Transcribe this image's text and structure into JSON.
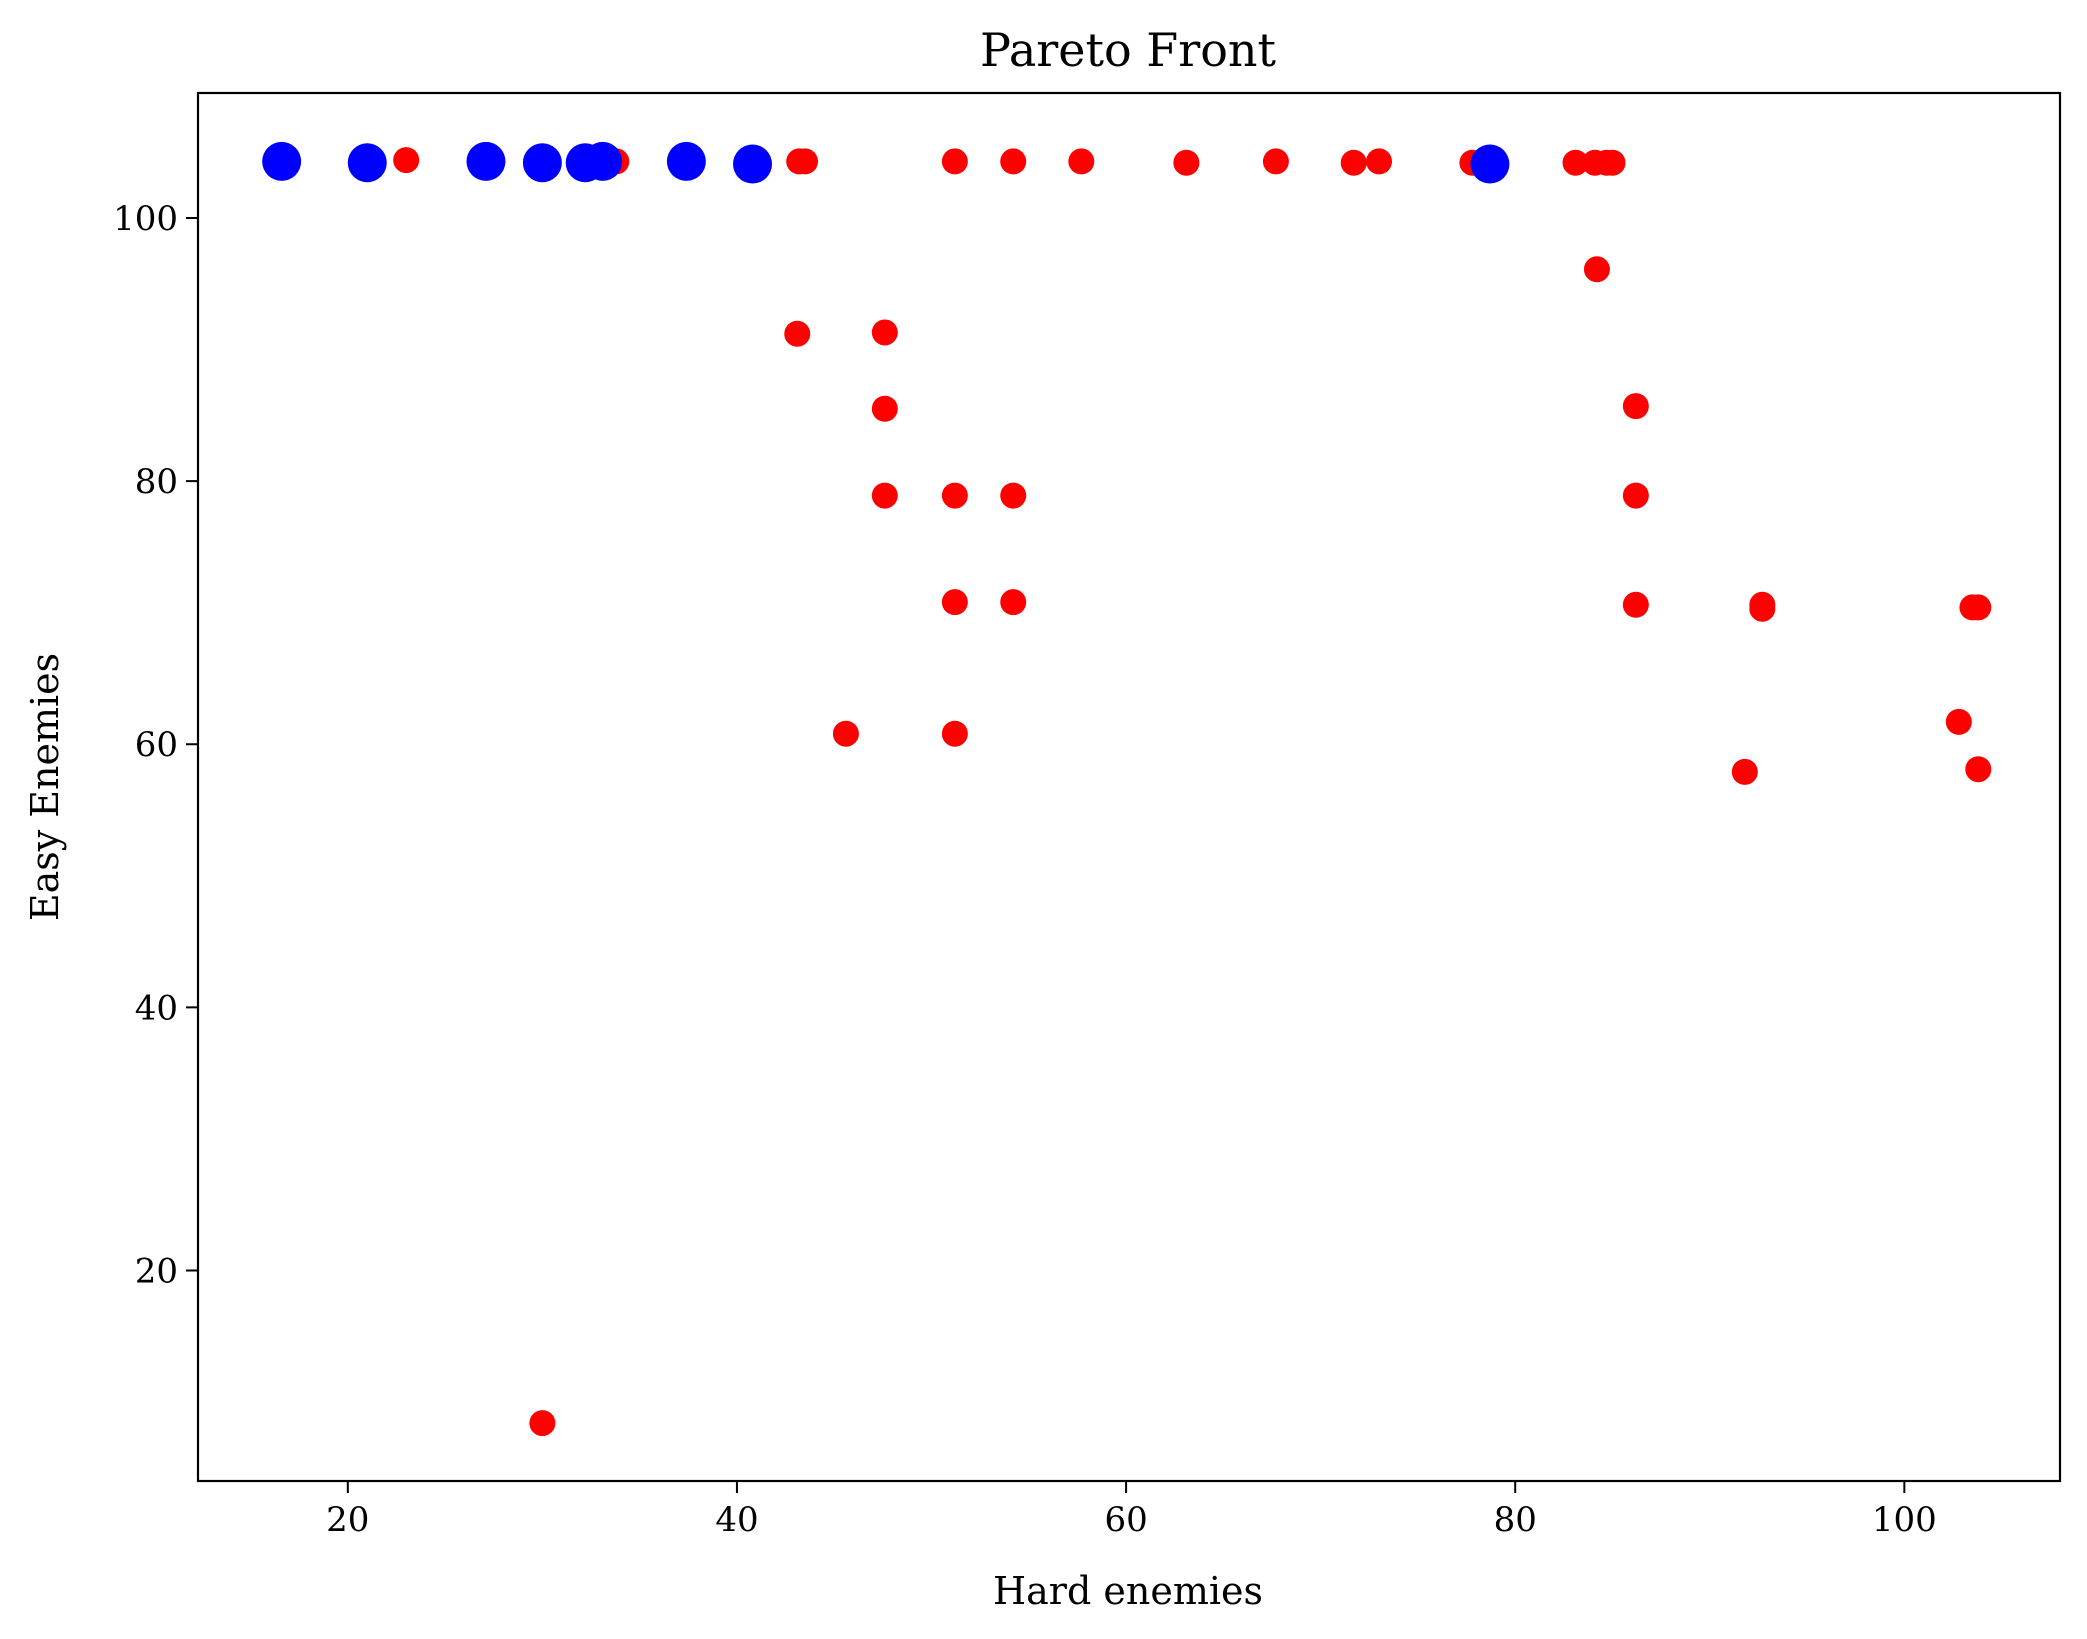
{
  "chart_data": {
    "type": "scatter",
    "title": "Pareto Front",
    "xlabel": "Hard enemies",
    "ylabel": "Easy Enemies",
    "xlim": [
      12.3,
      108
    ],
    "ylim": [
      4,
      109.5
    ],
    "xticks": [
      20,
      40,
      60,
      80,
      100
    ],
    "yticks": [
      20,
      40,
      60,
      80,
      100
    ],
    "xtick_labels": [
      "20",
      "40",
      "60",
      "80",
      "100"
    ],
    "ytick_labels": [
      "20",
      "40",
      "60",
      "80",
      "100"
    ],
    "grid": false,
    "series": [
      {
        "color": "#ff0000",
        "marker_size": "small",
        "points": [
          [
            23.0,
            104.4
          ],
          [
            33.8,
            104.3
          ],
          [
            43.2,
            104.3
          ],
          [
            43.5,
            104.3
          ],
          [
            51.2,
            104.3
          ],
          [
            54.2,
            104.3
          ],
          [
            57.7,
            104.3
          ],
          [
            63.1,
            104.2
          ],
          [
            67.7,
            104.3
          ],
          [
            71.7,
            104.2
          ],
          [
            73.0,
            104.3
          ],
          [
            77.8,
            104.2
          ],
          [
            83.1,
            104.2
          ],
          [
            84.1,
            104.2
          ],
          [
            84.7,
            104.2
          ],
          [
            85.0,
            104.2
          ],
          [
            84.2,
            96.1
          ],
          [
            43.1,
            91.2
          ],
          [
            47.6,
            91.3
          ],
          [
            47.6,
            85.5
          ],
          [
            86.2,
            85.7
          ],
          [
            47.6,
            78.9
          ],
          [
            51.2,
            78.9
          ],
          [
            54.2,
            78.9
          ],
          [
            86.2,
            78.9
          ],
          [
            51.2,
            70.8
          ],
          [
            54.2,
            70.8
          ],
          [
            86.2,
            70.6
          ],
          [
            92.7,
            70.6
          ],
          [
            92.7,
            70.3
          ],
          [
            103.5,
            70.4
          ],
          [
            103.8,
            70.4
          ],
          [
            45.6,
            60.8
          ],
          [
            51.2,
            60.8
          ],
          [
            102.8,
            61.7
          ],
          [
            91.8,
            57.9
          ],
          [
            103.8,
            58.1
          ],
          [
            30.0,
            8.4
          ]
        ]
      },
      {
        "color": "#0000ff",
        "marker_size": "large",
        "points": [
          [
            16.6,
            104.3
          ],
          [
            21.0,
            104.2
          ],
          [
            27.1,
            104.3
          ],
          [
            30.0,
            104.2
          ],
          [
            32.2,
            104.2
          ],
          [
            33.1,
            104.3
          ],
          [
            37.4,
            104.3
          ],
          [
            40.8,
            104.1
          ],
          [
            78.7,
            104.1
          ]
        ]
      }
    ]
  }
}
